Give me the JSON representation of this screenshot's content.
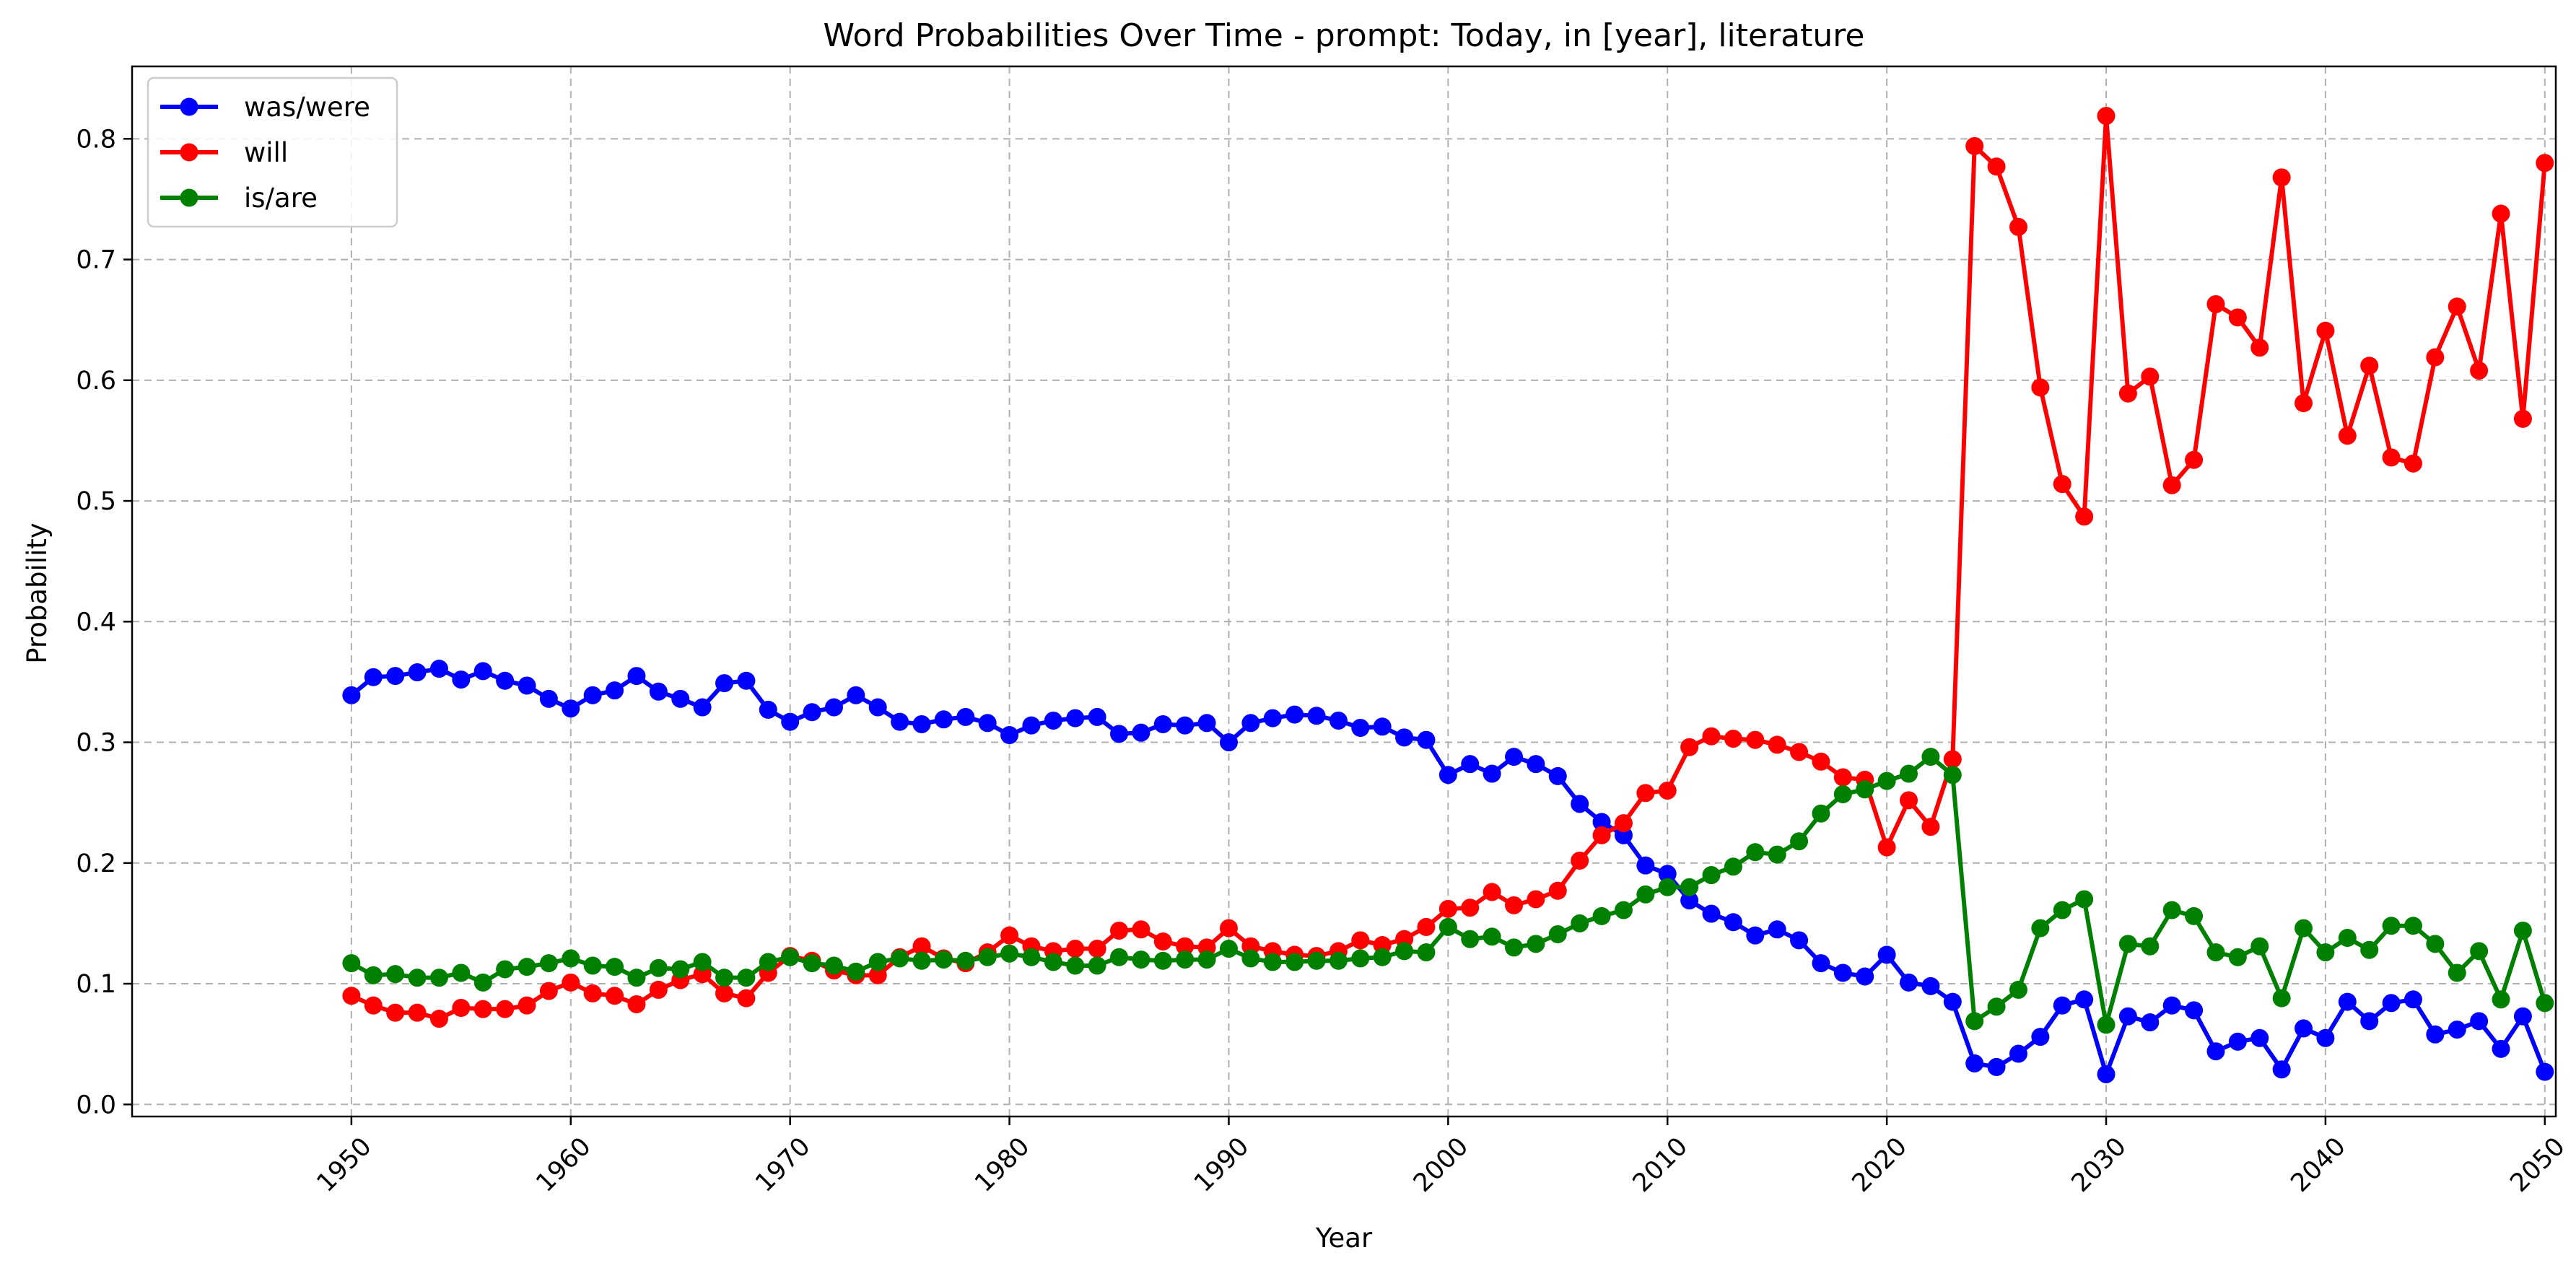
{
  "chart_data": {
    "type": "line",
    "title": "Word Probabilities Over Time - prompt: Today, in [year], literature",
    "xlabel": "Year",
    "ylabel": "Probability",
    "xlim": [
      1940,
      2050.5
    ],
    "ylim": [
      -0.01,
      0.86
    ],
    "xticks": [
      1950,
      1960,
      1970,
      1980,
      1990,
      2000,
      2010,
      2020,
      2030,
      2040,
      2050
    ],
    "yticks": [
      0.0,
      0.1,
      0.2,
      0.3,
      0.4,
      0.5,
      0.6,
      0.7,
      0.8
    ],
    "ytick_labels": [
      "0.0",
      "0.1",
      "0.2",
      "0.3",
      "0.4",
      "0.5",
      "0.6",
      "0.7",
      "0.8"
    ],
    "grid": true,
    "legend_position": "top-left",
    "x_start": 1950,
    "series": [
      {
        "name": "was/were",
        "color": "#0000ff",
        "values": [
          0.339,
          0.354,
          0.355,
          0.358,
          0.361,
          0.352,
          0.359,
          0.351,
          0.347,
          0.336,
          0.328,
          0.339,
          0.343,
          0.355,
          0.342,
          0.336,
          0.329,
          0.349,
          0.351,
          0.327,
          0.317,
          0.325,
          0.329,
          0.339,
          0.329,
          0.317,
          0.315,
          0.319,
          0.321,
          0.316,
          0.306,
          0.314,
          0.318,
          0.32,
          0.321,
          0.307,
          0.308,
          0.315,
          0.314,
          0.316,
          0.3,
          0.316,
          0.32,
          0.323,
          0.322,
          0.318,
          0.312,
          0.313,
          0.304,
          0.302,
          0.273,
          0.282,
          0.274,
          0.288,
          0.282,
          0.272,
          0.249,
          0.234,
          0.223,
          0.198,
          0.191,
          0.169,
          0.158,
          0.151,
          0.14,
          0.145,
          0.136,
          0.117,
          0.109,
          0.106,
          0.124,
          0.101,
          0.098,
          0.085,
          0.034,
          0.031,
          0.042,
          0.056,
          0.082,
          0.087,
          0.025,
          0.073,
          0.068,
          0.082,
          0.078,
          0.044,
          0.052,
          0.055,
          0.029,
          0.063,
          0.055,
          0.085,
          0.069,
          0.084,
          0.087,
          0.058,
          0.062,
          0.069,
          0.046,
          0.073,
          0.027
        ]
      },
      {
        "name": "will",
        "color": "#ff0000",
        "values": [
          0.09,
          0.082,
          0.076,
          0.076,
          0.071,
          0.08,
          0.079,
          0.079,
          0.082,
          0.094,
          0.101,
          0.092,
          0.09,
          0.083,
          0.095,
          0.103,
          0.108,
          0.092,
          0.088,
          0.109,
          0.123,
          0.119,
          0.111,
          0.107,
          0.107,
          0.122,
          0.131,
          0.121,
          0.117,
          0.126,
          0.14,
          0.131,
          0.127,
          0.129,
          0.129,
          0.144,
          0.145,
          0.135,
          0.131,
          0.13,
          0.146,
          0.131,
          0.127,
          0.124,
          0.123,
          0.127,
          0.136,
          0.132,
          0.137,
          0.147,
          0.162,
          0.163,
          0.176,
          0.165,
          0.17,
          0.177,
          0.202,
          0.223,
          0.233,
          0.258,
          0.26,
          0.296,
          0.305,
          0.303,
          0.302,
          0.298,
          0.292,
          0.284,
          0.271,
          0.269,
          0.213,
          0.252,
          0.23,
          0.286,
          0.794,
          0.777,
          0.727,
          0.594,
          0.514,
          0.487,
          0.819,
          0.589,
          0.603,
          0.513,
          0.534,
          0.663,
          0.652,
          0.627,
          0.768,
          0.581,
          0.641,
          0.554,
          0.612,
          0.536,
          0.531,
          0.619,
          0.661,
          0.608,
          0.738,
          0.568,
          0.78
        ]
      },
      {
        "name": "is/are",
        "color": "#008000",
        "values": [
          0.117,
          0.107,
          0.108,
          0.105,
          0.105,
          0.109,
          0.101,
          0.112,
          0.114,
          0.117,
          0.121,
          0.115,
          0.114,
          0.105,
          0.113,
          0.112,
          0.118,
          0.105,
          0.105,
          0.118,
          0.122,
          0.117,
          0.115,
          0.11,
          0.118,
          0.121,
          0.119,
          0.12,
          0.119,
          0.122,
          0.125,
          0.122,
          0.118,
          0.115,
          0.115,
          0.122,
          0.12,
          0.119,
          0.12,
          0.12,
          0.129,
          0.121,
          0.118,
          0.118,
          0.119,
          0.119,
          0.121,
          0.122,
          0.127,
          0.126,
          0.147,
          0.137,
          0.139,
          0.13,
          0.133,
          0.141,
          0.15,
          0.156,
          0.161,
          0.174,
          0.18,
          0.18,
          0.19,
          0.197,
          0.209,
          0.207,
          0.218,
          0.241,
          0.257,
          0.261,
          0.268,
          0.274,
          0.288,
          0.273,
          0.069,
          0.081,
          0.095,
          0.146,
          0.161,
          0.17,
          0.066,
          0.133,
          0.131,
          0.161,
          0.156,
          0.126,
          0.122,
          0.131,
          0.088,
          0.146,
          0.126,
          0.138,
          0.128,
          0.148,
          0.148,
          0.133,
          0.109,
          0.127,
          0.087,
          0.144,
          0.084
        ]
      }
    ]
  }
}
